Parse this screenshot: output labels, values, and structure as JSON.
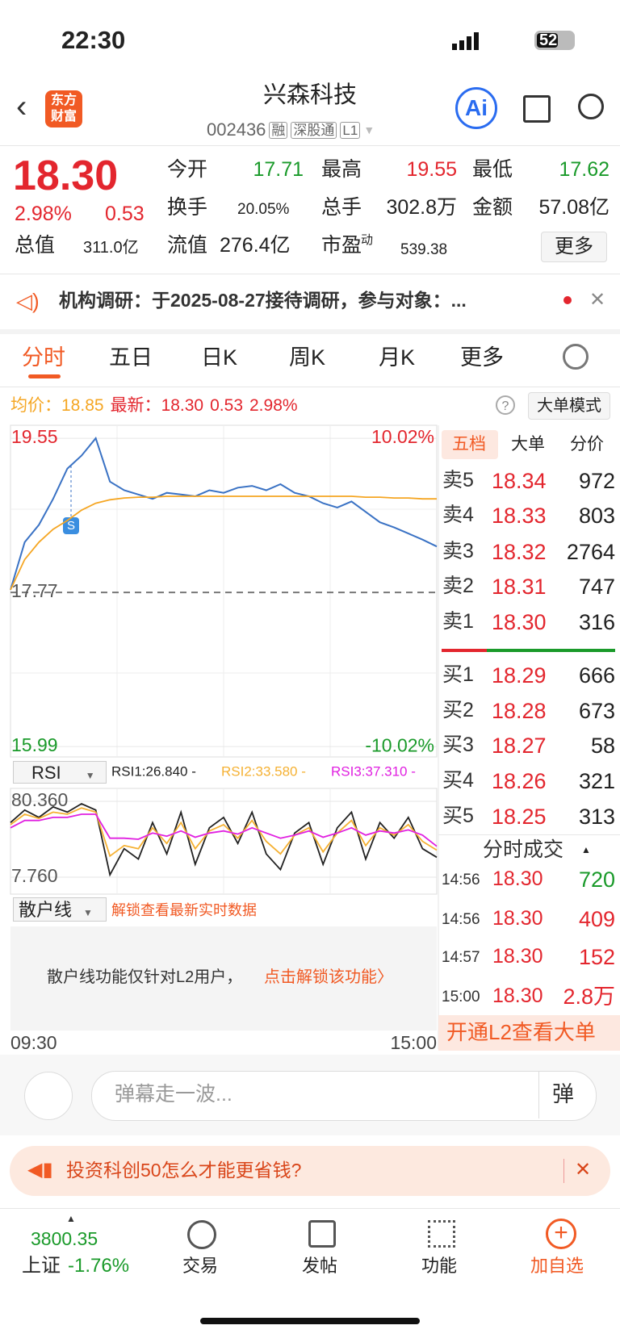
{
  "status_bar": {
    "time": "22:30",
    "battery": "52"
  },
  "header": {
    "logo": [
      "东方",
      "财富"
    ],
    "title": "兴森科技",
    "code": "002436",
    "tags": [
      "融",
      "深股通",
      "L1"
    ],
    "ai": "Ai"
  },
  "quote": {
    "price": "18.30",
    "change_pct": "2.98%",
    "change": "0.53",
    "stats": [
      {
        "label": "今开",
        "value": "17.71"
      },
      {
        "label": "最高",
        "value": "19.55"
      },
      {
        "label": "最低",
        "value": "17.62"
      },
      {
        "label": "换手",
        "value": "20.05%"
      },
      {
        "label": "总手",
        "value": "302.8万"
      },
      {
        "label": "金额",
        "value": "57.08亿"
      },
      {
        "label": "总值",
        "value": "311.0亿"
      },
      {
        "label": "流值",
        "value": "276.4亿"
      },
      {
        "label": "市盈",
        "sup": "动",
        "value": "539.38"
      }
    ],
    "more": "更多"
  },
  "notice": {
    "text": "机构调研：于2025-08-27接待调研，参与对象：..."
  },
  "tabs": [
    "分时",
    "五日",
    "日K",
    "周K",
    "月K",
    "更多"
  ],
  "info": {
    "avg_label": "均价：",
    "avg": "18.85",
    "last_label": "最新：",
    "last": "18.30",
    "change": "0.53",
    "change_pct": "2.98%",
    "mode": "大单模式"
  },
  "chart_data": [
    {
      "type": "line",
      "x": [
        0,
        8,
        16,
        24,
        32,
        40,
        48,
        56,
        64,
        72,
        80,
        88,
        96,
        104,
        112,
        120,
        128,
        136,
        144,
        152,
        160,
        168,
        176,
        184,
        192,
        200,
        208,
        216,
        224,
        232,
        240
      ],
      "xlim": [
        0,
        240
      ],
      "xticks": [
        {
          "value": 0,
          "label": "09:30"
        },
        {
          "value": 240,
          "label": "15:00"
        }
      ],
      "ylim": [
        15.87,
        19.7
      ],
      "yticks": [
        19.55,
        17.77,
        15.99
      ],
      "y2lim": [
        -10.69,
        10.86
      ],
      "y2ticks": [
        {
          "value": 10.02,
          "label": "10.02%"
        },
        {
          "value": -10.02,
          "label": "-10.02%"
        }
      ],
      "series": [
        {
          "color": "#3a72c4",
          "values": [
            17.8,
            18.35,
            18.55,
            18.85,
            19.2,
            19.35,
            19.55,
            19.05,
            18.95,
            18.9,
            18.85,
            18.92,
            18.9,
            18.88,
            18.95,
            18.92,
            18.98,
            19.0,
            18.95,
            19.02,
            18.92,
            18.88,
            18.8,
            18.75,
            18.82,
            18.7,
            18.58,
            18.52,
            18.45,
            18.38,
            18.3
          ]
        },
        {
          "color": "#f5a623",
          "values": [
            17.8,
            18.15,
            18.35,
            18.5,
            18.6,
            18.72,
            18.8,
            18.84,
            18.86,
            18.87,
            18.87,
            18.88,
            18.88,
            18.88,
            18.88,
            18.88,
            18.88,
            18.88,
            18.88,
            18.88,
            18.88,
            18.88,
            18.88,
            18.88,
            18.88,
            18.87,
            18.87,
            18.86,
            18.86,
            18.85,
            18.85
          ]
        }
      ]
    },
    {
      "type": "line",
      "title": "RSI",
      "x": [
        0,
        8,
        16,
        24,
        32,
        40,
        48,
        56,
        64,
        72,
        80,
        88,
        96,
        104,
        112,
        120,
        128,
        136,
        144,
        152,
        160,
        168,
        176,
        184,
        192,
        200,
        208,
        216,
        224,
        232,
        240
      ],
      "xlim": [
        0,
        240
      ],
      "ylim": [
        -8.5,
        92.7
      ],
      "yticks": [
        {
          "value": 80.36,
          "label": "80.360"
        },
        {
          "value": 7.76,
          "label": "7.760"
        }
      ],
      "series": [
        {
          "name": "RSI1:26.840 -",
          "color": "#222222",
          "values": [
            60,
            72,
            65,
            75,
            70,
            78,
            72,
            10,
            35,
            25,
            60,
            30,
            70,
            20,
            55,
            65,
            40,
            70,
            30,
            15,
            50,
            60,
            20,
            55,
            70,
            25,
            60,
            45,
            65,
            35,
            26.84
          ]
        },
        {
          "name": "RSI2:33.580 -",
          "color": "#f5b133",
          "values": [
            58,
            68,
            64,
            70,
            68,
            74,
            70,
            28,
            38,
            35,
            55,
            40,
            60,
            35,
            52,
            58,
            45,
            62,
            42,
            30,
            48,
            55,
            32,
            50,
            62,
            38,
            55,
            48,
            58,
            42,
            33.58
          ]
        },
        {
          "name": "RSI3:37.310 -",
          "color": "#e020e0",
          "values": [
            55,
            62,
            62,
            65,
            65,
            68,
            68,
            45,
            45,
            44,
            50,
            47,
            52,
            46,
            50,
            52,
            49,
            55,
            50,
            45,
            48,
            52,
            46,
            50,
            55,
            48,
            52,
            50,
            53,
            48,
            37.31
          ]
        }
      ]
    }
  ],
  "retail": {
    "title": "散户线",
    "unlock": "解锁查看最新实时数据",
    "message": "散户线功能仅针对L2用户，",
    "link": "点击解锁该功能〉"
  },
  "order_book": {
    "tabs": [
      "五档",
      "大单",
      "分价"
    ],
    "asks": [
      {
        "label": "卖5",
        "price": "18.34",
        "volume": "972"
      },
      {
        "label": "卖4",
        "price": "18.33",
        "volume": "803"
      },
      {
        "label": "卖3",
        "price": "18.32",
        "volume": "2764"
      },
      {
        "label": "卖2",
        "price": "18.31",
        "volume": "747"
      },
      {
        "label": "卖1",
        "price": "18.30",
        "volume": "316"
      }
    ],
    "bids": [
      {
        "label": "买1",
        "price": "18.29",
        "volume": "666"
      },
      {
        "label": "买2",
        "price": "18.28",
        "volume": "673"
      },
      {
        "label": "买3",
        "price": "18.27",
        "volume": "58"
      },
      {
        "label": "买4",
        "price": "18.26",
        "volume": "321"
      },
      {
        "label": "买5",
        "price": "18.25",
        "volume": "313"
      }
    ],
    "trades_title": "分时成交",
    "trades": [
      {
        "time": "14:56",
        "price": "18.30",
        "volume": "720"
      },
      {
        "time": "14:56",
        "price": "18.30",
        "volume": "409"
      },
      {
        "time": "14:57",
        "price": "18.30",
        "volume": "152"
      },
      {
        "time": "15:00",
        "price": "18.30",
        "volume": "2.8万"
      }
    ],
    "l2_banner": "开通L2查看大单"
  },
  "comment": {
    "placeholder": "弹幕走一波...",
    "button": "弹"
  },
  "ad": {
    "text": "投资科创50怎么才能更省钱?"
  },
  "bottom_nav": {
    "index_value": "3800.35",
    "index_name": "上证",
    "index_change": "-1.76%",
    "items": [
      "交易",
      "发帖",
      "功能",
      "加自选"
    ]
  }
}
